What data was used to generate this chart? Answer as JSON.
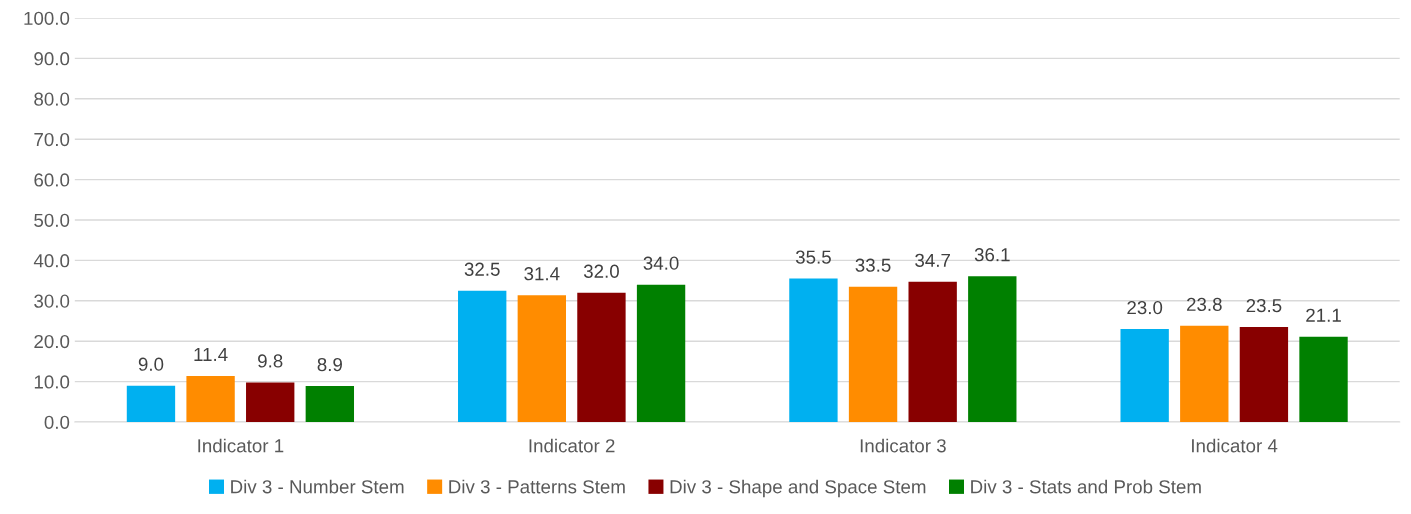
{
  "chart_data": {
    "type": "bar",
    "categories": [
      "Indicator 1",
      "Indicator 2",
      "Indicator 3",
      "Indicator 4"
    ],
    "series": [
      {
        "name": "Div 3 - Number Stem",
        "color": "#00b0f0",
        "values": [
          9.0,
          32.5,
          35.5,
          23.0
        ],
        "value_labels": [
          "9.0",
          "32.5",
          "35.5",
          "23.0"
        ]
      },
      {
        "name": "Div 3 - Patterns Stem",
        "color": "#ff8c00",
        "values": [
          11.4,
          31.4,
          33.5,
          23.8
        ],
        "value_labels": [
          "11.4",
          "31.4",
          "33.5",
          "23.8"
        ]
      },
      {
        "name": "Div 3 - Shape and Space Stem",
        "color": "#880000",
        "values": [
          9.8,
          32.0,
          34.7,
          23.5
        ],
        "value_labels": [
          "9.8",
          "32.0",
          "34.7",
          "23.5"
        ]
      },
      {
        "name": "Div 3 - Stats and Prob Stem",
        "color": "#008000",
        "values": [
          8.9,
          34.0,
          36.1,
          21.1
        ],
        "value_labels": [
          "8.9",
          "34.0",
          "36.1",
          "21.1"
        ]
      }
    ],
    "ylim": [
      0,
      100
    ],
    "yticks": [
      {
        "value": 0,
        "label": "0.0"
      },
      {
        "value": 10,
        "label": "10.0"
      },
      {
        "value": 20,
        "label": "20.0"
      },
      {
        "value": 30,
        "label": "30.0"
      },
      {
        "value": 40,
        "label": "40.0"
      },
      {
        "value": 50,
        "label": "50.0"
      },
      {
        "value": 60,
        "label": "60.0"
      },
      {
        "value": 70,
        "label": "70.0"
      },
      {
        "value": 80,
        "label": "80.0"
      },
      {
        "value": 90,
        "label": "90.0"
      },
      {
        "value": 100,
        "label": "100.0"
      }
    ],
    "grid": "y",
    "legend": "bottom"
  }
}
